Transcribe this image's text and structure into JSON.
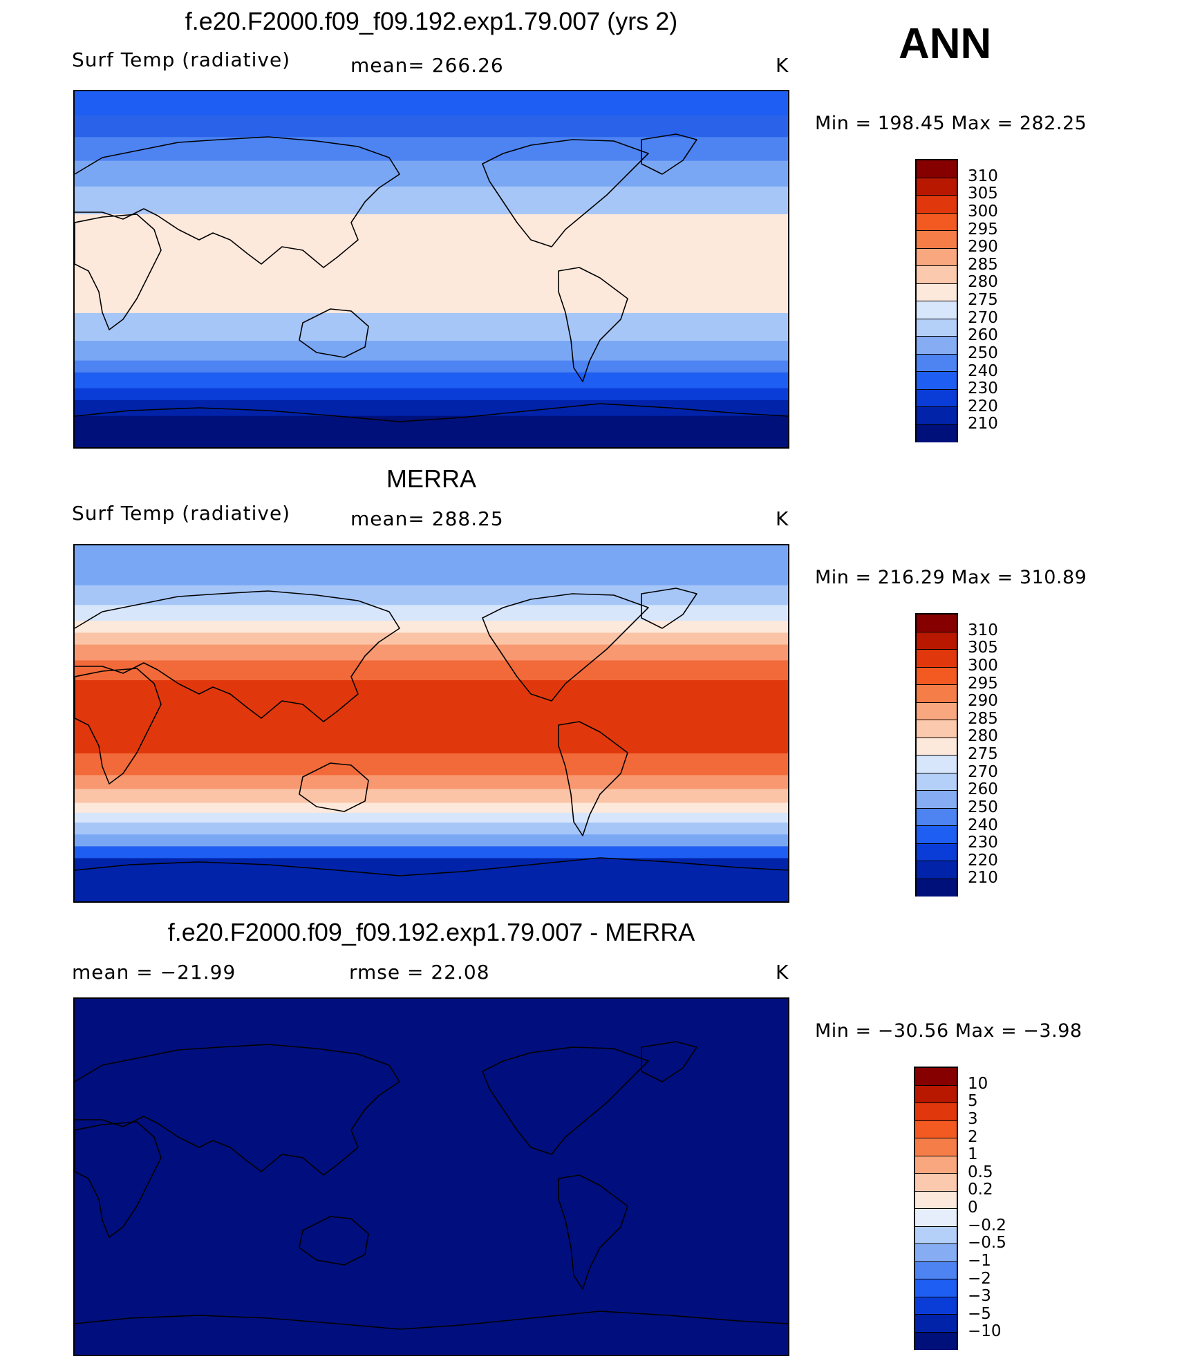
{
  "season": "ANN",
  "units": "K",
  "panels": [
    {
      "title": "f.e20.F2000.f09_f09.192.exp1.79.007 (yrs 2)",
      "variable": "Surf Temp (radiative)",
      "stat": "mean=  266.26",
      "units": "K",
      "minmax": "Min  =  198.45  Max  =  282.25",
      "palette": "abs",
      "levels": [
        "310",
        "305",
        "300",
        "295",
        "290",
        "285",
        "280",
        "275",
        "270",
        "260",
        "250",
        "240",
        "230",
        "220",
        "210"
      ],
      "bands": [
        {
          "color": "#00107a",
          "lat": -90
        },
        {
          "color": "#0023aa",
          "lat": -74
        },
        {
          "color": "#0a3dd8",
          "lat": -66
        },
        {
          "color": "#1f5ef2",
          "lat": -60
        },
        {
          "color": "#4d84f2",
          "lat": -52
        },
        {
          "color": "#7aa7f4",
          "lat": -46
        },
        {
          "color": "#a6c6f8",
          "lat": -36
        },
        {
          "color": "#fde9db",
          "lat": -22
        },
        {
          "color": "#a6c6f8",
          "lat": 28
        },
        {
          "color": "#7aa7f4",
          "lat": 42
        },
        {
          "color": "#4d84f2",
          "lat": 55
        },
        {
          "color": "#2a63ea",
          "lat": 67
        },
        {
          "color": "#1f5ef2",
          "lat": 78
        }
      ]
    },
    {
      "title": "MERRA",
      "variable": "Surf Temp (radiative)",
      "stat": "mean=  288.25",
      "units": "K",
      "minmax": "Min  =  216.29  Max  =  310.89",
      "palette": "abs",
      "levels": [
        "310",
        "305",
        "300",
        "295",
        "290",
        "285",
        "280",
        "275",
        "270",
        "260",
        "250",
        "240",
        "230",
        "220",
        "210"
      ],
      "bands": [
        {
          "color": "#0023aa",
          "lat": -90
        },
        {
          "color": "#1f5ef2",
          "lat": -68
        },
        {
          "color": "#7aa7f4",
          "lat": -62
        },
        {
          "color": "#a6c6f8",
          "lat": -56
        },
        {
          "color": "#d8e6fb",
          "lat": -50
        },
        {
          "color": "#fde9db",
          "lat": -45
        },
        {
          "color": "#fbc4a6",
          "lat": -40
        },
        {
          "color": "#f89870",
          "lat": -33
        },
        {
          "color": "#f26a3a",
          "lat": -26
        },
        {
          "color": "#e0380c",
          "lat": -15
        },
        {
          "color": "#f26a3a",
          "lat": 22
        },
        {
          "color": "#f89870",
          "lat": 32
        },
        {
          "color": "#fbc4a6",
          "lat": 40
        },
        {
          "color": "#fde9db",
          "lat": 46
        },
        {
          "color": "#d8e6fb",
          "lat": 52
        },
        {
          "color": "#a6c6f8",
          "lat": 60
        },
        {
          "color": "#7aa7f4",
          "lat": 70
        }
      ]
    },
    {
      "title": "f.e20.F2000.f09_f09.192.exp1.79.007 - MERRA",
      "variable": "mean  =  −21.99",
      "stat": "rmse  =    22.08",
      "units": "K",
      "minmax": "Min  =  −30.56  Max  =    −3.98",
      "palette": "diff",
      "levels": [
        "10",
        "5",
        "3",
        "2",
        "1",
        "0.5",
        "0.2",
        "0",
        "−0.2",
        "−0.5",
        "−1",
        "−2",
        "−3",
        "−5",
        "−10"
      ],
      "bands": [
        {
          "color": "#000f7d",
          "lat": -90
        }
      ]
    }
  ],
  "colorbar": {
    "abs_colors": [
      "#860000",
      "#b81800",
      "#e0380c",
      "#f25a22",
      "#f57d48",
      "#f8a77f",
      "#fbc9ad",
      "#fde9db",
      "#d8e6fb",
      "#b4cff8",
      "#86adf4",
      "#4d84f2",
      "#1f5ef2",
      "#0a3dd8",
      "#0023aa",
      "#00107a"
    ],
    "diff_colors": [
      "#860000",
      "#b81800",
      "#e0380c",
      "#f25a22",
      "#f57d48",
      "#f8a77f",
      "#fbc9ad",
      "#fde9db",
      "#e6eefc",
      "#b4cff8",
      "#86adf4",
      "#4d84f2",
      "#1f5ef2",
      "#0a3dd8",
      "#0023aa",
      "#00107a"
    ]
  }
}
